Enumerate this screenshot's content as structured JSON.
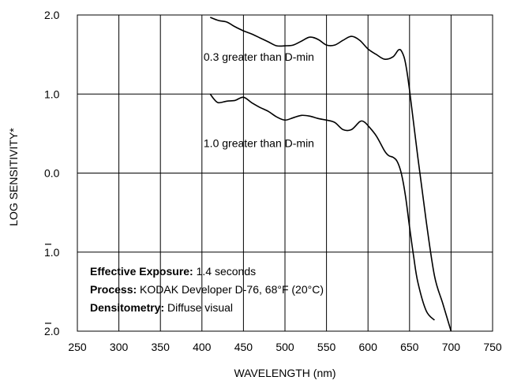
{
  "chart_data": {
    "type": "line",
    "title": "",
    "xlabel": "WAVELENGTH (nm)",
    "ylabel": "LOG SENSITIVITY*",
    "xlim": [
      250,
      750
    ],
    "ylim": [
      -2.0,
      2.0
    ],
    "x_ticks": [
      250,
      300,
      350,
      400,
      450,
      500,
      550,
      600,
      650,
      700,
      750
    ],
    "x_tick_labels": [
      "250",
      "300",
      "350",
      "400",
      "450",
      "500",
      "550",
      "600",
      "650",
      "700",
      "750"
    ],
    "y_ticks": [
      2.0,
      1.0,
      0.0,
      -1.0,
      -2.0
    ],
    "y_tick_labels": [
      "2.0",
      "1.0",
      "0.0",
      "1.0",
      "2.0"
    ],
    "y_tick_bars": [
      false,
      false,
      false,
      true,
      true
    ],
    "grid": true,
    "series": [
      {
        "name": "0.3 greater than D-min",
        "x": [
          410,
          420,
          430,
          440,
          450,
          460,
          470,
          480,
          490,
          500,
          510,
          520,
          530,
          540,
          550,
          560,
          570,
          580,
          590,
          600,
          610,
          620,
          630,
          637,
          641,
          645,
          650,
          660,
          670,
          680,
          690,
          700
        ],
        "y": [
          1.97,
          1.93,
          1.91,
          1.85,
          1.8,
          1.76,
          1.71,
          1.66,
          1.61,
          1.61,
          1.62,
          1.67,
          1.72,
          1.69,
          1.62,
          1.62,
          1.68,
          1.73,
          1.68,
          1.57,
          1.5,
          1.44,
          1.47,
          1.56,
          1.53,
          1.4,
          1.05,
          0.2,
          -0.6,
          -1.3,
          -1.65,
          -2.0
        ]
      },
      {
        "name": "1.0 greater than D-min",
        "x": [
          410,
          415,
          420,
          430,
          440,
          450,
          460,
          470,
          480,
          490,
          500,
          510,
          520,
          530,
          540,
          550,
          560,
          570,
          580,
          590,
          595,
          600,
          610,
          620,
          625,
          630,
          635,
          640,
          645,
          650,
          655,
          660,
          670,
          680
        ],
        "y": [
          1.0,
          0.93,
          0.89,
          0.91,
          0.92,
          0.96,
          0.89,
          0.83,
          0.78,
          0.71,
          0.67,
          0.7,
          0.73,
          0.72,
          0.69,
          0.67,
          0.64,
          0.55,
          0.55,
          0.65,
          0.65,
          0.6,
          0.47,
          0.28,
          0.22,
          0.2,
          0.15,
          0.0,
          -0.28,
          -0.68,
          -1.06,
          -1.38,
          -1.74,
          -1.86
        ]
      }
    ],
    "curve_labels": [
      {
        "text": "0.3 greater than D-min",
        "x": 402,
        "y": 1.42
      },
      {
        "text": "1.0 greater than D-min",
        "x": 402,
        "y": 0.33
      }
    ],
    "notes": [
      {
        "key": "Effective Exposure:",
        "value": " 1.4 seconds"
      },
      {
        "key": "Process:",
        "value": " KODAK Developer D-76, 68°F (20°C)"
      },
      {
        "key": "Densitometry:",
        "value": " Diffuse visual"
      }
    ],
    "colors": {
      "line": "#000000",
      "grid": "#000000",
      "background": "#ffffff"
    }
  }
}
